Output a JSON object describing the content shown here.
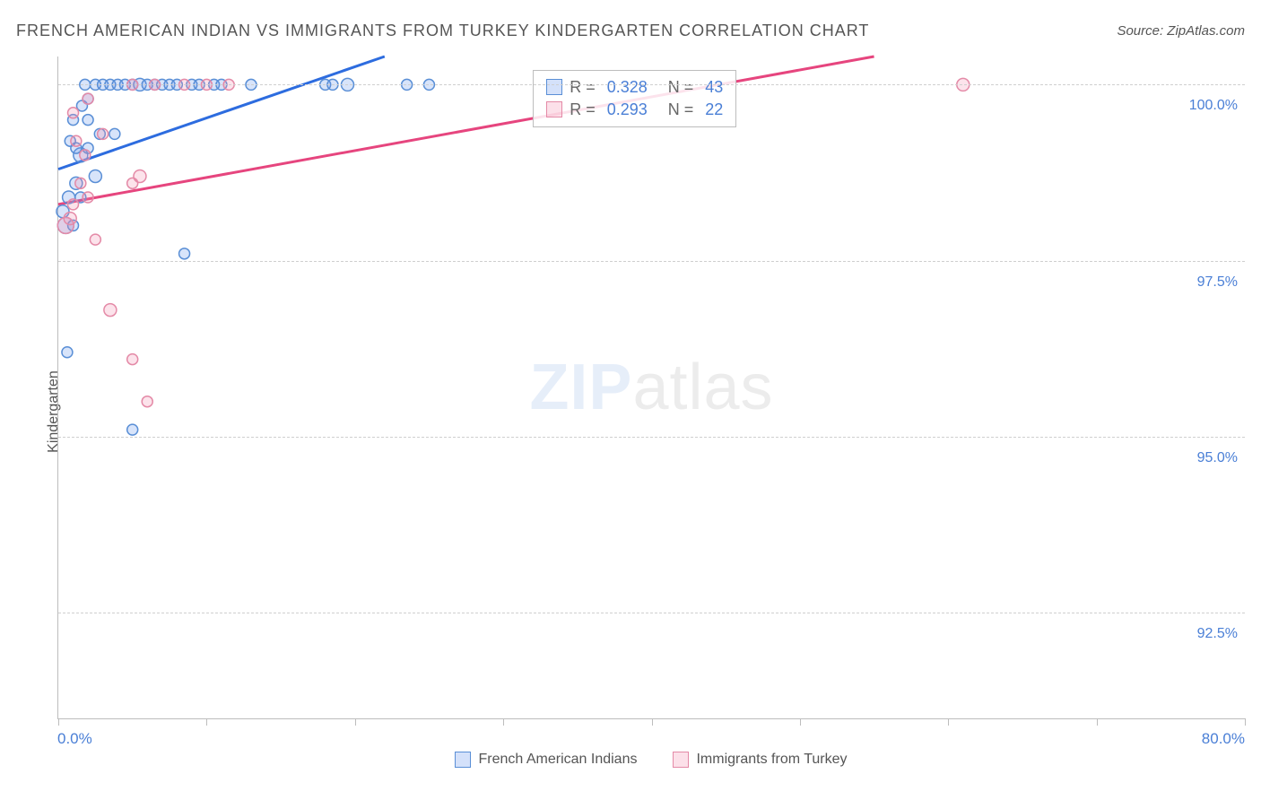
{
  "title": "FRENCH AMERICAN INDIAN VS IMMIGRANTS FROM TURKEY KINDERGARTEN CORRELATION CHART",
  "source": "Source: ZipAtlas.com",
  "ylabel": "Kindergarten",
  "watermark_bold": "ZIP",
  "watermark_rest": "atlas",
  "chart": {
    "xlim": [
      0,
      80
    ],
    "ylim": [
      91.0,
      100.4
    ],
    "y_gridlines": [
      92.5,
      95.0,
      97.5,
      100.0
    ],
    "y_tick_labels": [
      "92.5%",
      "95.0%",
      "97.5%",
      "100.0%"
    ],
    "x_ticks": [
      0,
      10,
      20,
      30,
      40,
      50,
      60,
      70,
      80
    ],
    "x_left_label": "0.0%",
    "x_right_label": "80.0%",
    "background_color": "#ffffff",
    "grid_color": "#cfcfcf",
    "axis_color": "#bdbdbd",
    "label_color": "#4a7fd6",
    "series": {
      "blue": {
        "name": "French American Indians",
        "stroke": "#5a8fd6",
        "fill": "rgba(100,149,237,0.25)",
        "line_stroke": "#2d6cdf",
        "line_width": 3,
        "R": "0.328",
        "N": "43",
        "trend": {
          "x1": 0,
          "y1": 98.8,
          "x2": 22,
          "y2": 100.4
        },
        "points": [
          {
            "x": 0.3,
            "y": 98.2,
            "r": 7
          },
          {
            "x": 0.5,
            "y": 98.0,
            "r": 9
          },
          {
            "x": 1.0,
            "y": 98.0,
            "r": 6
          },
          {
            "x": 0.6,
            "y": 96.2,
            "r": 6
          },
          {
            "x": 1.2,
            "y": 98.6,
            "r": 7
          },
          {
            "x": 1.5,
            "y": 99.0,
            "r": 8
          },
          {
            "x": 1.2,
            "y": 99.1,
            "r": 6
          },
          {
            "x": 2.0,
            "y": 99.1,
            "r": 6
          },
          {
            "x": 0.8,
            "y": 99.2,
            "r": 6
          },
          {
            "x": 1.5,
            "y": 98.4,
            "r": 6
          },
          {
            "x": 2.5,
            "y": 98.7,
            "r": 7
          },
          {
            "x": 1.0,
            "y": 99.5,
            "r": 6
          },
          {
            "x": 2.0,
            "y": 99.5,
            "r": 6
          },
          {
            "x": 1.8,
            "y": 100.0,
            "r": 6
          },
          {
            "x": 2.5,
            "y": 100.0,
            "r": 6
          },
          {
            "x": 3.0,
            "y": 100.0,
            "r": 6
          },
          {
            "x": 3.5,
            "y": 100.0,
            "r": 6
          },
          {
            "x": 4.0,
            "y": 100.0,
            "r": 6
          },
          {
            "x": 4.5,
            "y": 100.0,
            "r": 6
          },
          {
            "x": 5.0,
            "y": 100.0,
            "r": 6
          },
          {
            "x": 5.5,
            "y": 100.0,
            "r": 7
          },
          {
            "x": 6.0,
            "y": 100.0,
            "r": 6
          },
          {
            "x": 6.5,
            "y": 100.0,
            "r": 6
          },
          {
            "x": 7.0,
            "y": 100.0,
            "r": 6
          },
          {
            "x": 7.5,
            "y": 100.0,
            "r": 6
          },
          {
            "x": 8.0,
            "y": 100.0,
            "r": 6
          },
          {
            "x": 9.0,
            "y": 100.0,
            "r": 6
          },
          {
            "x": 9.5,
            "y": 100.0,
            "r": 6
          },
          {
            "x": 10.5,
            "y": 100.0,
            "r": 6
          },
          {
            "x": 11.0,
            "y": 100.0,
            "r": 6
          },
          {
            "x": 13.0,
            "y": 100.0,
            "r": 6
          },
          {
            "x": 18.0,
            "y": 100.0,
            "r": 6
          },
          {
            "x": 18.5,
            "y": 100.0,
            "r": 6
          },
          {
            "x": 19.5,
            "y": 100.0,
            "r": 7
          },
          {
            "x": 23.5,
            "y": 100.0,
            "r": 6
          },
          {
            "x": 25.0,
            "y": 100.0,
            "r": 6
          },
          {
            "x": 2.8,
            "y": 99.3,
            "r": 6
          },
          {
            "x": 3.8,
            "y": 99.3,
            "r": 6
          },
          {
            "x": 1.6,
            "y": 99.7,
            "r": 6
          },
          {
            "x": 8.5,
            "y": 97.6,
            "r": 6
          },
          {
            "x": 5.0,
            "y": 95.1,
            "r": 6
          },
          {
            "x": 0.7,
            "y": 98.4,
            "r": 7
          },
          {
            "x": 2.0,
            "y": 99.8,
            "r": 6
          }
        ]
      },
      "pink": {
        "name": "Immigrants from Turkey",
        "stroke": "#e48aa7",
        "fill": "rgba(244,143,177,0.25)",
        "line_stroke": "#e6457e",
        "line_width": 3,
        "R": "0.293",
        "N": "22",
        "trend": {
          "x1": 0,
          "y1": 98.3,
          "x2": 55,
          "y2": 100.4
        },
        "points": [
          {
            "x": 0.5,
            "y": 98.0,
            "r": 9
          },
          {
            "x": 0.8,
            "y": 98.1,
            "r": 7
          },
          {
            "x": 1.0,
            "y": 98.3,
            "r": 6
          },
          {
            "x": 2.0,
            "y": 98.4,
            "r": 6
          },
          {
            "x": 1.5,
            "y": 98.6,
            "r": 6
          },
          {
            "x": 1.8,
            "y": 99.0,
            "r": 6
          },
          {
            "x": 3.0,
            "y": 99.3,
            "r": 6
          },
          {
            "x": 5.0,
            "y": 98.6,
            "r": 6
          },
          {
            "x": 5.5,
            "y": 98.7,
            "r": 7
          },
          {
            "x": 2.5,
            "y": 97.8,
            "r": 6
          },
          {
            "x": 3.5,
            "y": 96.8,
            "r": 7
          },
          {
            "x": 6.0,
            "y": 95.5,
            "r": 6
          },
          {
            "x": 5.0,
            "y": 96.1,
            "r": 6
          },
          {
            "x": 1.0,
            "y": 99.6,
            "r": 6
          },
          {
            "x": 2.0,
            "y": 99.8,
            "r": 6
          },
          {
            "x": 5.0,
            "y": 100.0,
            "r": 6
          },
          {
            "x": 6.5,
            "y": 100.0,
            "r": 6
          },
          {
            "x": 8.5,
            "y": 100.0,
            "r": 6
          },
          {
            "x": 10.0,
            "y": 100.0,
            "r": 6
          },
          {
            "x": 11.5,
            "y": 100.0,
            "r": 6
          },
          {
            "x": 61.0,
            "y": 100.0,
            "r": 7
          },
          {
            "x": 1.2,
            "y": 99.2,
            "r": 6
          }
        ]
      }
    }
  },
  "stats_box": {
    "top_pct": 2,
    "left_pct": 40,
    "rows": [
      {
        "swatch": "blue",
        "r_label": "R = ",
        "r_val": "0.328",
        "n_label": "   N = ",
        "n_val": "43"
      },
      {
        "swatch": "pink",
        "r_label": "R = ",
        "r_val": "0.293",
        "n_label": "   N = ",
        "n_val": "22"
      }
    ]
  },
  "legend": [
    {
      "swatch": "blue",
      "label": "French American Indians"
    },
    {
      "swatch": "pink",
      "label": "Immigrants from Turkey"
    }
  ]
}
